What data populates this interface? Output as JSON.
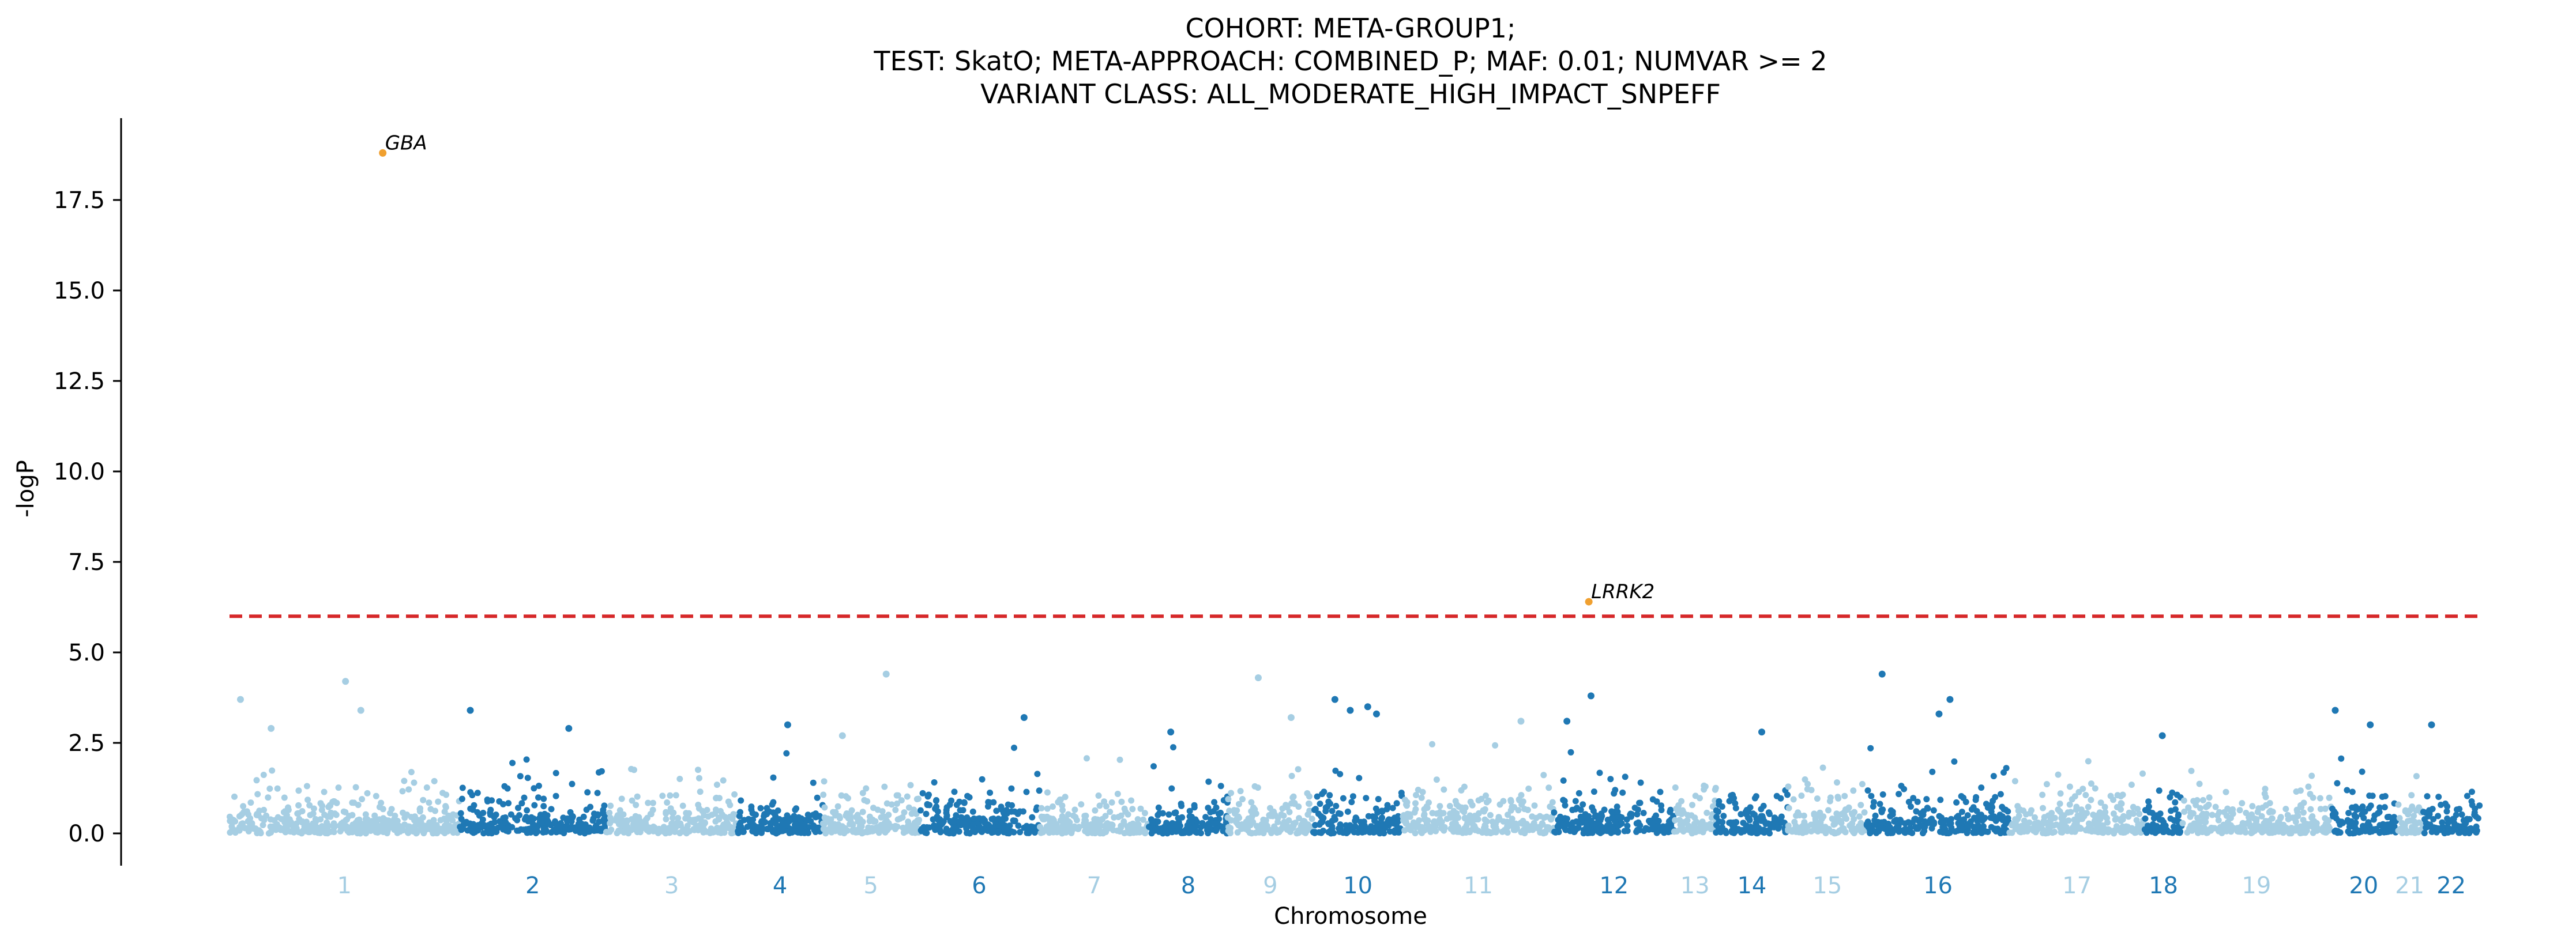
{
  "chart_data": {
    "type": "scatter",
    "title_lines": [
      "COHORT: META-GROUP1;",
      "TEST: SkatO; META-APPROACH: COMBINED_P; MAF: 0.01; NUMVAR >= 2",
      "VARIANT CLASS: ALL_MODERATE_HIGH_IMPACT_SNPEFF"
    ],
    "xlabel": "Chromosome",
    "ylabel": "-logP",
    "ylim": [
      -0.9,
      19.7
    ],
    "yticks": [
      0.0,
      2.5,
      5.0,
      7.5,
      10.0,
      12.5,
      15.0,
      17.5
    ],
    "ytick_labels": [
      "0.0",
      "2.5",
      "5.0",
      "7.5",
      "10.0",
      "12.5",
      "15.0",
      "17.5"
    ],
    "significance_threshold": 6.0,
    "threshold_color": "#d62728",
    "color_light": "#a6cee3",
    "color_dark": "#1f78b4",
    "highlight_color": "#f0a030",
    "chromosomes": [
      {
        "label": "1",
        "start": 0.0,
        "end": 10.5
      },
      {
        "label": "2",
        "start": 10.5,
        "end": 17.2
      },
      {
        "label": "3",
        "start": 17.2,
        "end": 23.2
      },
      {
        "label": "4",
        "start": 23.2,
        "end": 27.1
      },
      {
        "label": "5",
        "start": 27.1,
        "end": 31.5
      },
      {
        "label": "6",
        "start": 31.5,
        "end": 37.0
      },
      {
        "label": "7",
        "start": 37.0,
        "end": 42.0
      },
      {
        "label": "8",
        "start": 42.0,
        "end": 45.6
      },
      {
        "label": "9",
        "start": 45.6,
        "end": 49.5
      },
      {
        "label": "10",
        "start": 49.5,
        "end": 53.6
      },
      {
        "label": "11",
        "start": 53.6,
        "end": 60.5
      },
      {
        "label": "12",
        "start": 60.5,
        "end": 66.0
      },
      {
        "label": "13",
        "start": 66.0,
        "end": 67.9
      },
      {
        "label": "14",
        "start": 67.9,
        "end": 71.2
      },
      {
        "label": "15",
        "start": 71.2,
        "end": 74.8
      },
      {
        "label": "16",
        "start": 74.8,
        "end": 81.3
      },
      {
        "label": "17",
        "start": 81.3,
        "end": 87.5
      },
      {
        "label": "18",
        "start": 87.5,
        "end": 89.2
      },
      {
        "label": "19",
        "start": 89.2,
        "end": 96.0
      },
      {
        "label": "20",
        "start": 96.0,
        "end": 99.0
      },
      {
        "label": "21",
        "start": 99.0,
        "end": 100.2
      },
      {
        "label": "22",
        "start": 100.2,
        "end": 102.8
      }
    ],
    "annotated_points": [
      {
        "gene": "GBA",
        "chrom": "1",
        "x": 7.0,
        "y": 18.8
      },
      {
        "gene": "LRRK2",
        "chrom": "12",
        "x": 62.1,
        "y": 6.4
      }
    ],
    "notable_points": [
      {
        "chrom": "1",
        "x": 0.5,
        "y": 3.7
      },
      {
        "chrom": "1",
        "x": 5.3,
        "y": 4.2
      },
      {
        "chrom": "1",
        "x": 6.0,
        "y": 3.4
      },
      {
        "chrom": "1",
        "x": 1.9,
        "y": 2.9
      },
      {
        "chrom": "2",
        "x": 11.0,
        "y": 3.4
      },
      {
        "chrom": "2",
        "x": 15.5,
        "y": 2.9
      },
      {
        "chrom": "4",
        "x": 25.5,
        "y": 3.0
      },
      {
        "chrom": "5",
        "x": 30.0,
        "y": 4.4
      },
      {
        "chrom": "5",
        "x": 28.0,
        "y": 2.7
      },
      {
        "chrom": "6",
        "x": 36.3,
        "y": 3.2
      },
      {
        "chrom": "8",
        "x": 43.0,
        "y": 2.8
      },
      {
        "chrom": "9",
        "x": 47.0,
        "y": 4.3
      },
      {
        "chrom": "9",
        "x": 48.5,
        "y": 3.2
      },
      {
        "chrom": "10",
        "x": 50.5,
        "y": 3.7
      },
      {
        "chrom": "10",
        "x": 52.0,
        "y": 3.5
      },
      {
        "chrom": "10",
        "x": 51.2,
        "y": 3.4
      },
      {
        "chrom": "10",
        "x": 52.4,
        "y": 3.3
      },
      {
        "chrom": "11",
        "x": 59.0,
        "y": 3.1
      },
      {
        "chrom": "12",
        "x": 62.2,
        "y": 3.8
      },
      {
        "chrom": "12",
        "x": 61.1,
        "y": 3.1
      },
      {
        "chrom": "14",
        "x": 70.0,
        "y": 2.8
      },
      {
        "chrom": "16",
        "x": 75.5,
        "y": 4.4
      },
      {
        "chrom": "16",
        "x": 78.6,
        "y": 3.7
      },
      {
        "chrom": "16",
        "x": 78.1,
        "y": 3.3
      },
      {
        "chrom": "18",
        "x": 88.3,
        "y": 2.7
      },
      {
        "chrom": "20",
        "x": 96.2,
        "y": 3.4
      },
      {
        "chrom": "20",
        "x": 97.8,
        "y": 3.0
      },
      {
        "chrom": "22",
        "x": 100.6,
        "y": 3.0
      }
    ]
  }
}
